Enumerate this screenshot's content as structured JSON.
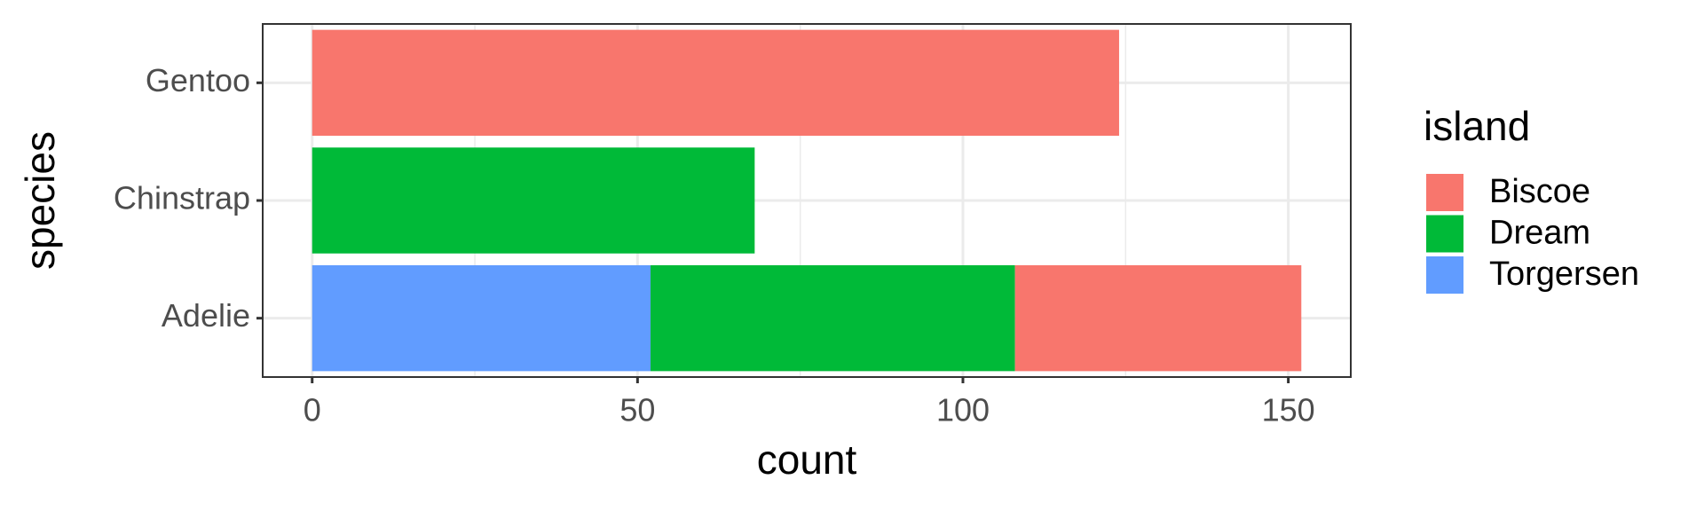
{
  "chart_data": {
    "type": "bar",
    "orientation": "horizontal",
    "stacked": true,
    "x_label": "count",
    "y_label": "species",
    "legend_title": "island",
    "categories": [
      "Adelie",
      "Chinstrap",
      "Gentoo"
    ],
    "series": [
      {
        "name": "Biscoe",
        "color": "#F8766D",
        "values": [
          44,
          null,
          124
        ]
      },
      {
        "name": "Dream",
        "color": "#00BA38",
        "values": [
          56,
          68,
          null
        ]
      },
      {
        "name": "Torgersen",
        "color": "#619CFF",
        "values": [
          52,
          null,
          null
        ]
      }
    ],
    "xlim": [
      -7.6,
      159.6
    ],
    "xticks": [
      0,
      50,
      100,
      150
    ],
    "xminorticks": [
      25,
      75,
      125
    ],
    "grid": true,
    "legend_position": "right"
  }
}
